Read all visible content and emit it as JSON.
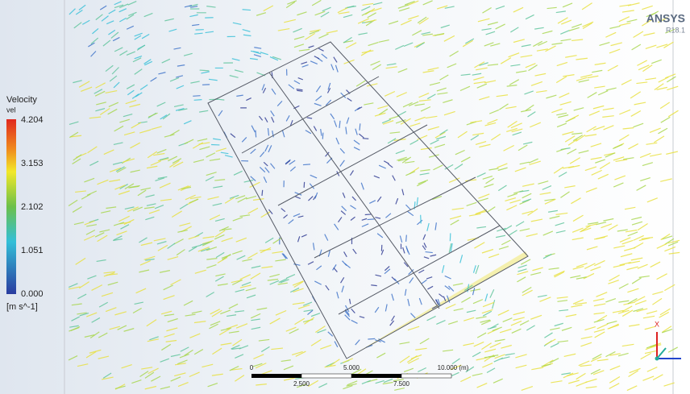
{
  "legend": {
    "title": "Velocity",
    "variable": "vel",
    "ticks": [
      "4.204",
      "3.153",
      "2.102",
      "1.051",
      "0.000"
    ],
    "unit": "[m s^-1]"
  },
  "brand": {
    "name": "ANSYS",
    "version": "R18.1"
  },
  "scale_bar": {
    "top_labels": [
      "0",
      "5.000",
      "10.000 (m)"
    ],
    "bottom_labels": [
      "2.500",
      "7.500"
    ]
  },
  "triad": {
    "axis": "X"
  }
}
